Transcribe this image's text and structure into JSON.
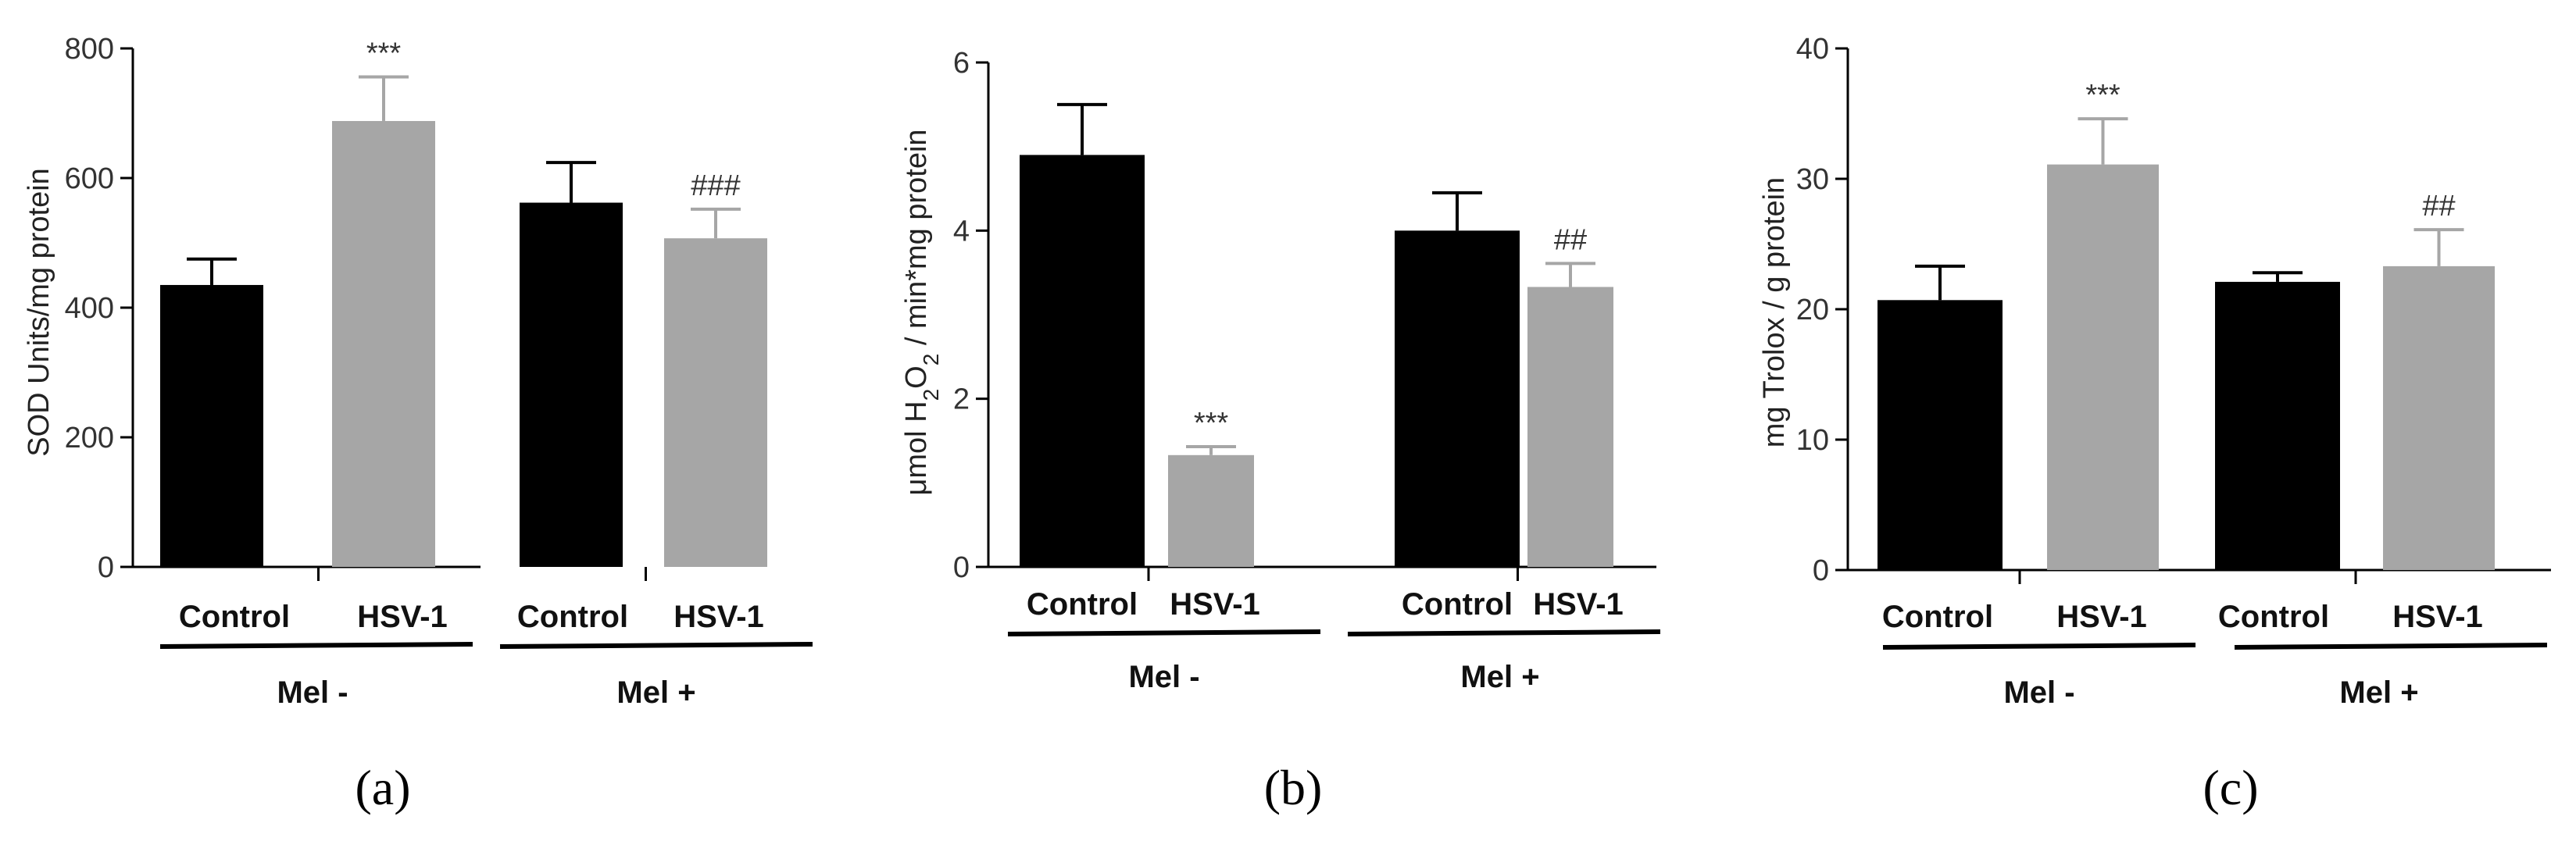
{
  "figure": {
    "bar_colors": {
      "control": "#000000",
      "hsv": "#a6a6a6"
    },
    "axis_color": "#000000"
  },
  "chart_data": [
    {
      "type": "bar",
      "panel_label": "(a)",
      "ylabel": "SOD Units/mg protein",
      "ylim": [
        0,
        800
      ],
      "yticks": [
        0,
        200,
        400,
        600,
        800
      ],
      "categories": [
        "Control",
        "HSV-1",
        "Control",
        "HSV-1"
      ],
      "groups": [
        "Mel -",
        "Mel +"
      ],
      "values": [
        435,
        688,
        562,
        507
      ],
      "errors": [
        40,
        68,
        62,
        45
      ],
      "significance": [
        "",
        "***",
        "",
        "###"
      ],
      "grid": false
    },
    {
      "type": "bar",
      "panel_label": "(b)",
      "ylabel": "μmol H2O2 / min*mg protein",
      "ylim": [
        0,
        6
      ],
      "yticks": [
        0,
        2,
        4,
        6
      ],
      "categories": [
        "Control",
        "HSV-1",
        "Control",
        "HSV-1"
      ],
      "groups": [
        "Mel -",
        "Mel +"
      ],
      "values": [
        4.9,
        1.33,
        4.0,
        3.33
      ],
      "errors": [
        0.6,
        0.1,
        0.45,
        0.28
      ],
      "significance": [
        "",
        "***",
        "",
        "##"
      ],
      "grid": false
    },
    {
      "type": "bar",
      "panel_label": "(c)",
      "ylabel": "mg Trolox / g protein",
      "ylim": [
        0,
        40
      ],
      "yticks": [
        0,
        10,
        20,
        30,
        40
      ],
      "categories": [
        "Control",
        "HSV-1",
        "Control",
        "HSV-1"
      ],
      "groups": [
        "Mel -",
        "Mel +"
      ],
      "values": [
        20.7,
        31.1,
        22.1,
        23.3
      ],
      "errors": [
        2.6,
        3.5,
        0.7,
        2.8
      ],
      "significance": [
        "",
        "***",
        "",
        "##"
      ],
      "grid": false
    }
  ]
}
